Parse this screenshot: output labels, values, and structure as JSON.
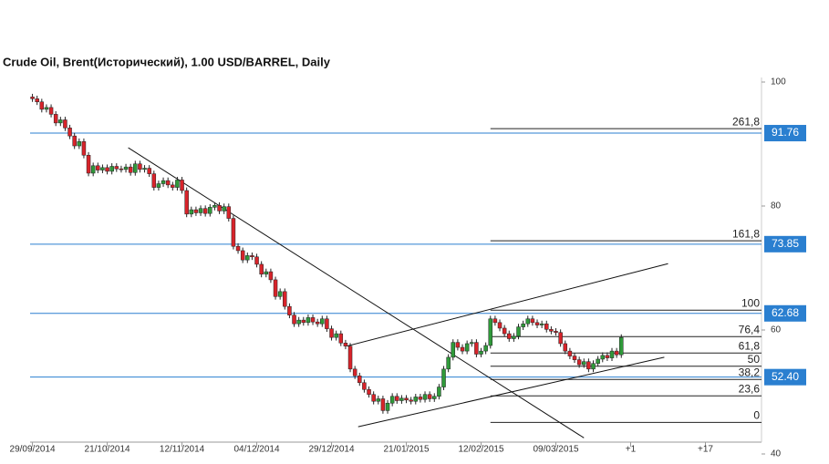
{
  "chart_data": {
    "type": "candlestick",
    "title": "Crude Oil, Brent(Исторический), 1.00 USD/BARREL, Daily",
    "open": [
      97.6,
      97.3,
      96.8,
      95.6,
      95.9,
      94.8,
      93.4,
      93.9,
      92.6,
      91.3,
      89.7,
      90.4,
      88.2,
      85.3,
      86.5,
      85.8,
      86.2,
      85.6,
      86.4,
      86.0,
      85.9,
      86.3,
      85.4,
      86.8,
      85.9,
      86.1,
      85.2,
      83.0,
      83.6,
      84.1,
      83.4,
      83.0,
      84.2,
      82.5,
      78.7,
      79.4,
      78.9,
      79.6,
      78.8,
      79.8,
      80.1,
      79.2,
      79.9,
      78.0,
      73.5,
      72.8,
      71.3,
      72.0,
      71.8,
      70.6,
      69.0,
      69.4,
      68.1,
      65.4,
      66.2,
      63.8,
      62.4,
      61.0,
      61.6,
      61.2,
      62.0,
      61.3,
      61.0,
      61.8,
      60.2,
      58.8,
      59.4,
      57.9,
      57.4,
      53.7,
      52.6,
      51.5,
      50.4,
      49.6,
      48.5,
      48.9,
      47.0,
      48.2,
      49.3,
      48.6,
      49.0,
      48.7,
      48.5,
      49.2,
      48.8,
      49.6,
      48.9,
      49.3,
      50.8,
      53.7,
      55.6,
      58.0,
      57.2,
      56.6,
      57.8,
      58.0,
      56.1,
      56.6,
      57.5,
      61.8,
      61.2,
      60.3,
      59.4,
      58.6,
      59.0,
      60.5,
      61.0,
      61.8,
      61.2,
      60.8,
      61.0,
      60.1,
      59.8,
      59.6,
      57.8,
      56.6,
      55.8,
      55.2,
      54.4,
      54.9,
      53.7,
      54.6,
      55.3,
      55.9,
      55.5,
      56.6,
      56.0
    ],
    "high": [
      98.1,
      97.8,
      97.3,
      96.4,
      96.4,
      95.3,
      94.4,
      94.4,
      93.1,
      91.8,
      90.9,
      90.9,
      88.7,
      87.0,
      87.0,
      86.7,
      86.7,
      86.9,
      86.9,
      86.5,
      86.8,
      86.8,
      87.3,
      87.3,
      86.6,
      86.6,
      85.7,
      84.1,
      84.6,
      84.6,
      83.9,
      84.7,
      84.7,
      83.0,
      79.9,
      79.9,
      80.1,
      80.1,
      80.3,
      80.6,
      80.6,
      80.4,
      80.4,
      78.5,
      74.0,
      73.3,
      72.5,
      72.5,
      72.3,
      71.1,
      69.9,
      69.9,
      68.6,
      66.7,
      66.7,
      64.3,
      62.9,
      62.1,
      62.1,
      62.5,
      62.5,
      61.8,
      62.3,
      62.3,
      60.7,
      59.9,
      59.9,
      58.4,
      57.9,
      54.2,
      53.1,
      52.0,
      50.9,
      50.1,
      49.4,
      49.4,
      48.7,
      49.8,
      49.8,
      49.5,
      49.5,
      49.2,
      49.7,
      49.7,
      50.1,
      50.1,
      49.8,
      51.3,
      54.2,
      56.1,
      58.5,
      58.5,
      57.7,
      58.3,
      58.5,
      58.5,
      57.1,
      58.0,
      62.3,
      62.3,
      61.7,
      60.8,
      59.9,
      59.5,
      61.0,
      61.5,
      62.3,
      62.3,
      61.7,
      61.5,
      61.5,
      60.6,
      60.3,
      60.1,
      58.3,
      57.1,
      56.3,
      55.7,
      55.4,
      55.4,
      55.1,
      55.8,
      56.4,
      56.4,
      57.1,
      57.1,
      59.3
    ],
    "low": [
      96.8,
      96.3,
      95.1,
      95.1,
      94.3,
      92.9,
      92.9,
      92.1,
      90.8,
      89.2,
      89.2,
      87.7,
      84.8,
      84.8,
      85.3,
      85.3,
      85.1,
      85.1,
      85.5,
      85.4,
      85.4,
      84.9,
      84.9,
      85.4,
      85.4,
      84.7,
      82.5,
      82.5,
      83.1,
      82.9,
      82.5,
      82.5,
      82.0,
      78.2,
      78.2,
      78.4,
      78.4,
      78.3,
      78.3,
      79.3,
      78.7,
      78.7,
      77.5,
      73.0,
      72.3,
      70.8,
      70.8,
      71.3,
      70.1,
      68.5,
      68.5,
      67.6,
      64.9,
      64.9,
      63.3,
      61.9,
      60.5,
      60.5,
      60.7,
      60.7,
      60.8,
      60.5,
      60.5,
      59.7,
      58.3,
      58.3,
      57.4,
      56.9,
      53.2,
      52.1,
      51.0,
      49.9,
      49.1,
      48.0,
      48.0,
      46.5,
      46.5,
      47.7,
      48.1,
      48.1,
      48.2,
      48.0,
      48.0,
      48.3,
      48.3,
      48.4,
      48.4,
      48.8,
      50.3,
      53.2,
      55.1,
      56.7,
      56.1,
      56.1,
      57.3,
      55.6,
      55.6,
      56.1,
      57.0,
      60.7,
      59.8,
      58.9,
      58.1,
      58.1,
      58.5,
      60.0,
      60.5,
      60.7,
      60.3,
      60.3,
      59.6,
      59.3,
      59.1,
      57.3,
      56.1,
      55.3,
      54.7,
      53.9,
      53.9,
      53.2,
      53.2,
      54.1,
      54.8,
      55.0,
      55.0,
      55.5,
      55.5
    ],
    "close": [
      97.3,
      96.8,
      95.6,
      95.9,
      94.8,
      93.4,
      93.9,
      92.6,
      91.3,
      89.7,
      90.4,
      88.2,
      85.3,
      86.5,
      85.8,
      86.2,
      85.6,
      86.4,
      86.0,
      85.9,
      86.3,
      85.4,
      86.8,
      85.9,
      86.1,
      85.2,
      83.0,
      83.6,
      84.1,
      83.4,
      83.0,
      84.2,
      82.5,
      78.7,
      79.4,
      78.9,
      79.6,
      78.8,
      79.8,
      80.1,
      79.2,
      79.9,
      78.0,
      73.5,
      72.8,
      71.3,
      72.0,
      71.8,
      70.6,
      69.0,
      69.4,
      68.1,
      65.4,
      66.2,
      63.8,
      62.4,
      61.0,
      61.6,
      61.2,
      62.0,
      61.3,
      61.0,
      61.8,
      60.2,
      58.8,
      59.4,
      57.9,
      57.4,
      53.7,
      52.6,
      51.5,
      50.4,
      49.6,
      48.5,
      48.9,
      47.0,
      48.2,
      49.3,
      48.6,
      49.0,
      48.7,
      48.5,
      49.2,
      48.8,
      49.6,
      48.9,
      49.3,
      50.8,
      53.7,
      55.6,
      58.0,
      57.2,
      56.6,
      57.8,
      58.0,
      56.1,
      56.6,
      57.5,
      61.8,
      61.2,
      60.3,
      59.4,
      58.6,
      59.0,
      60.5,
      61.0,
      61.8,
      61.2,
      60.8,
      61.0,
      60.1,
      59.8,
      59.6,
      57.8,
      56.6,
      55.8,
      55.2,
      54.4,
      54.9,
      53.7,
      54.6,
      55.3,
      55.9,
      55.5,
      56.6,
      56.0,
      58.8
    ],
    "up_color": "#2f9a3a",
    "down_color": "#d8232a",
    "xlim": [
      -0.5,
      156
    ],
    "xticks": [
      {
        "value": 0,
        "label": "29/09/2014"
      },
      {
        "value": 16,
        "label": "21/10/2014"
      },
      {
        "value": 32,
        "label": "12/11/2014"
      },
      {
        "value": 48,
        "label": "04/12/2014"
      },
      {
        "value": 64,
        "label": "29/12/2014"
      },
      {
        "value": 80,
        "label": "21/01/2015"
      },
      {
        "value": 96,
        "label": "12/02/2015"
      },
      {
        "value": 112,
        "label": "09/03/2015"
      },
      {
        "value": 128,
        "label": "+1"
      },
      {
        "value": 144,
        "label": "+17"
      }
    ],
    "ylim": [
      40,
      100
    ],
    "yticks": [
      40,
      60,
      80,
      100
    ],
    "level_color": "#2a7fd0",
    "levels": [
      {
        "value": 91.76,
        "label": "91.76"
      },
      {
        "value": 73.85,
        "label": "73.85"
      },
      {
        "value": 62.68,
        "label": "62.68"
      },
      {
        "value": 52.4,
        "label": "52.40"
      }
    ],
    "fibonacci": {
      "start": 98,
      "price_0": 45.1,
      "price_100": 63.2,
      "levels": [
        {
          "value": 261.8,
          "label": "261,8"
        },
        {
          "value": 161.8,
          "label": "161,8"
        },
        {
          "value": 100,
          "label": "100"
        },
        {
          "value": 76.4,
          "label": "76,4"
        },
        {
          "value": 61.8,
          "label": "61,8"
        },
        {
          "value": 50,
          "label": "50"
        },
        {
          "value": 38.2,
          "label": "38,2"
        },
        {
          "value": 23.6,
          "label": "23,6"
        },
        {
          "value": 0,
          "label": "0"
        }
      ]
    },
    "trendlines": [
      {
        "x": [
          20.5,
          118
        ],
        "y": [
          89.4,
          42.6
        ]
      },
      {
        "x": [
          67.3,
          136
        ],
        "y": [
          57.4,
          70.7
        ]
      },
      {
        "x": [
          69.7,
          135.2
        ],
        "y": [
          44.4,
          55.6
        ]
      }
    ]
  }
}
